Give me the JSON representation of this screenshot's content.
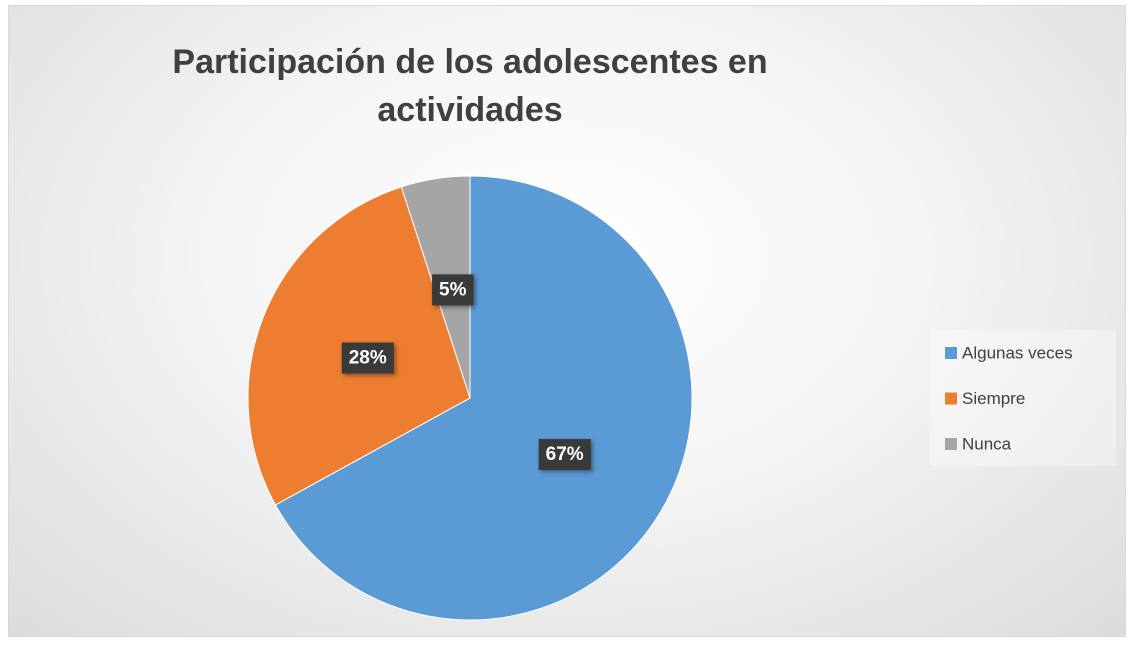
{
  "chart_data": {
    "type": "pie",
    "title": "Participación de los adolescentes en actividades",
    "categories": [
      "Algunas veces",
      "Siempre",
      "Nunca"
    ],
    "values": [
      67,
      28,
      5
    ],
    "value_labels": [
      "67%",
      "28%",
      "5%"
    ],
    "colors": [
      "#5b9bd5",
      "#ed7d31",
      "#a5a5a5"
    ],
    "legend": "right"
  }
}
